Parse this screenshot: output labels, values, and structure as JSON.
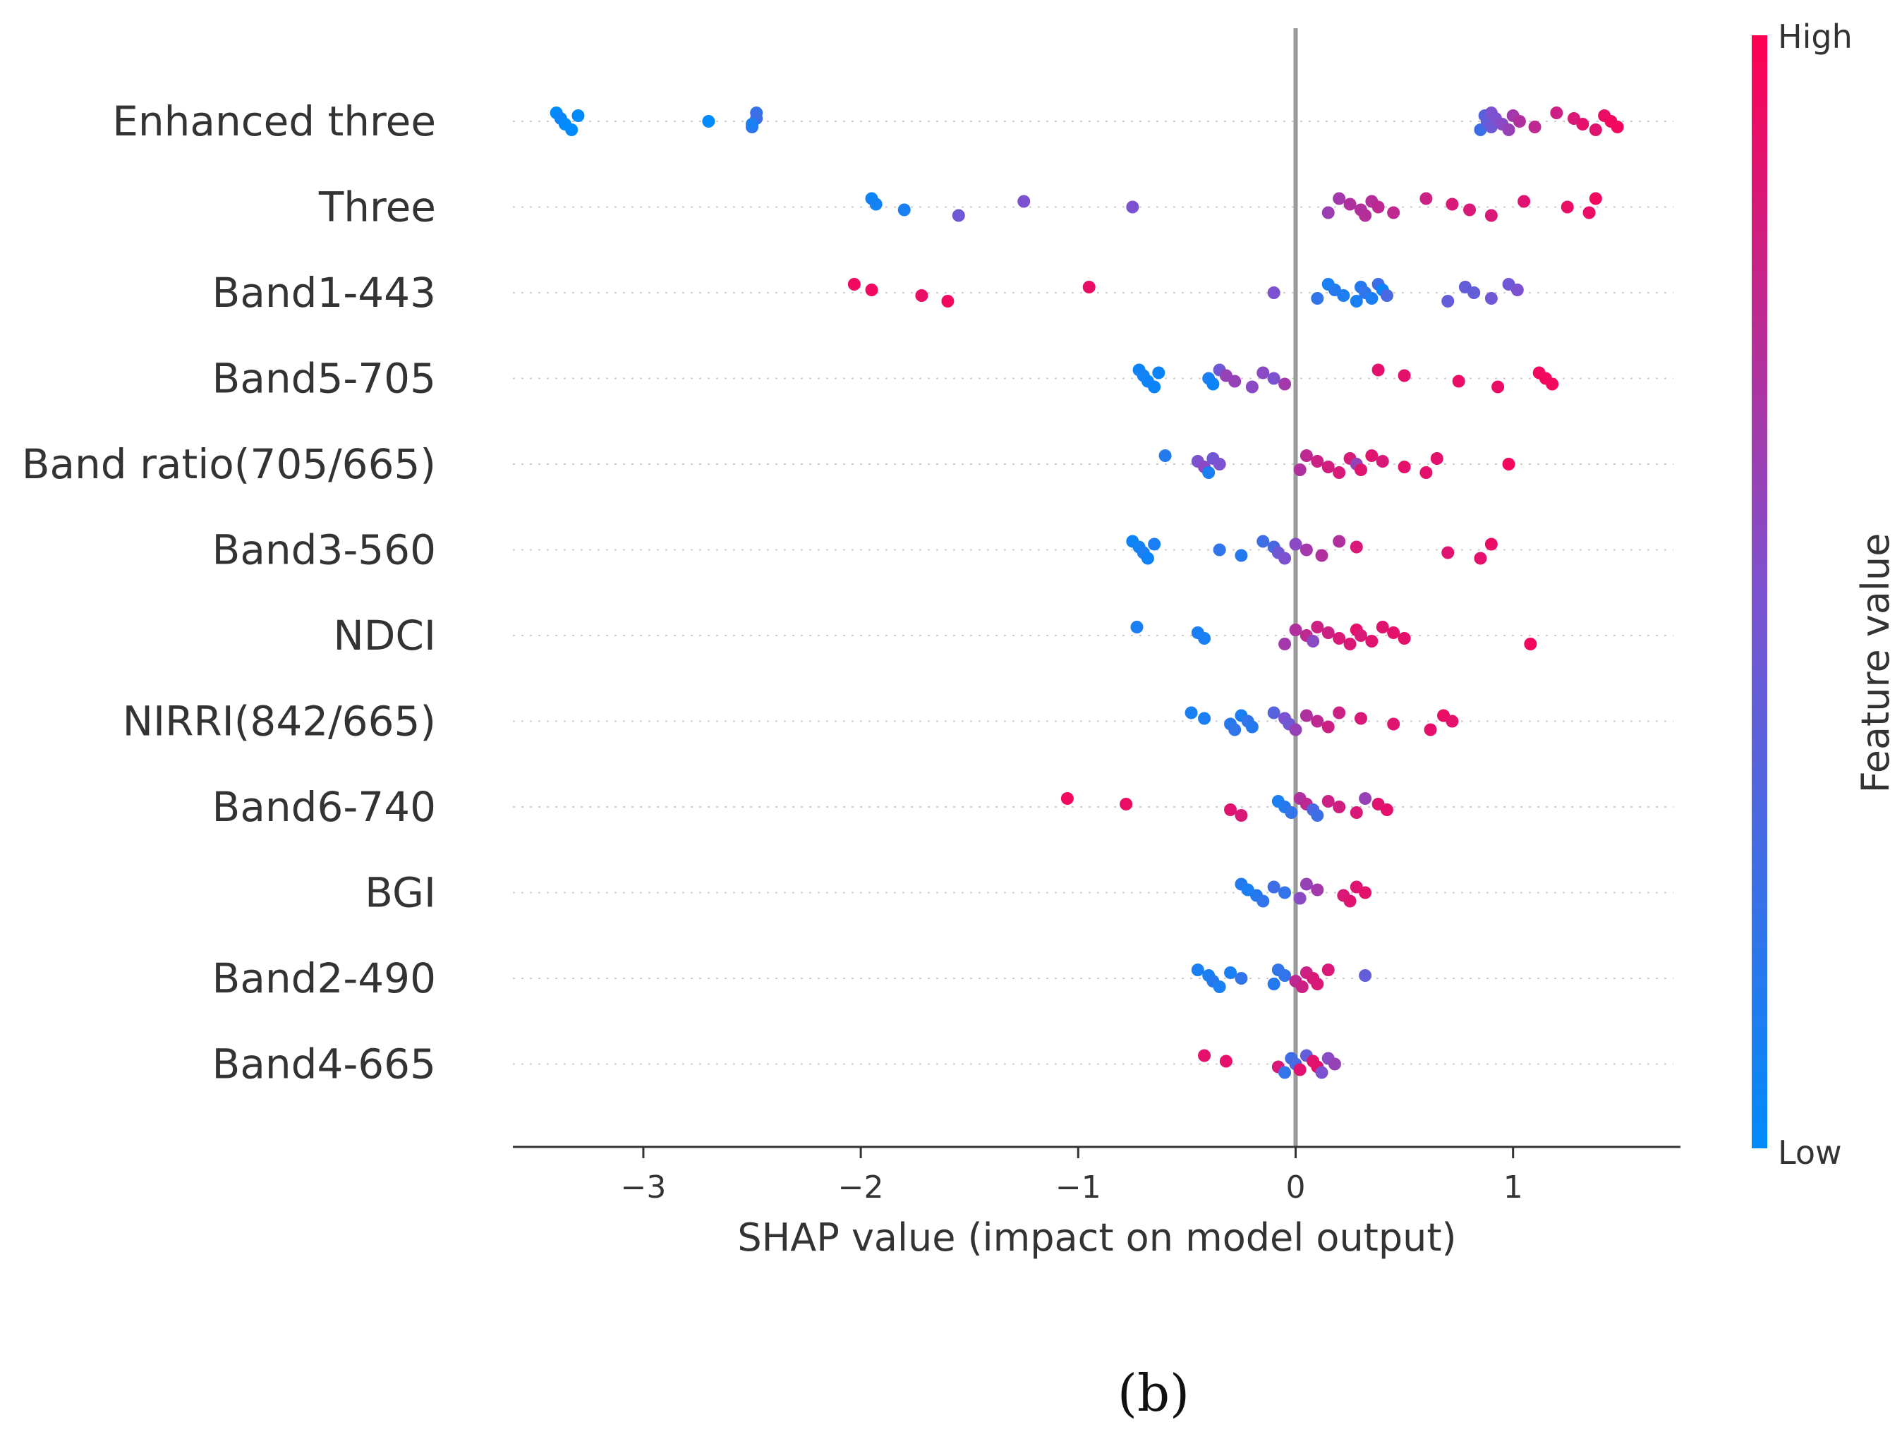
{
  "chart_data": {
    "type": "scatter",
    "subtype": "shap-beeswarm",
    "features": [
      "Enhanced three",
      "Three",
      "Band1-443",
      "Band5-705",
      "Band ratio(705/665)",
      "Band3-560",
      "NDCI",
      "NIRRI(842/665)",
      "Band6-740",
      "BGI",
      "Band2-490",
      "Band4-665"
    ],
    "xlabel": "SHAP value (impact on model output)",
    "xlim": [
      -3.6,
      1.77
    ],
    "xticks": [
      -3,
      -2,
      -1,
      0,
      1
    ],
    "xtick_labels": [
      "−3",
      "−2",
      "−1",
      "0",
      "1"
    ],
    "colorbar": {
      "title": "Feature value",
      "high_label": "High",
      "low_label": "Low"
    },
    "colors": {
      "low": "#008afb",
      "mid": "#7c52d0",
      "high": "#ff0052",
      "zero_line": "#999999",
      "axis": "#333333",
      "row_line": "#cccccc"
    },
    "caption": "(b)",
    "series": [
      {
        "feature": "Enhanced three",
        "points": [
          [
            -3.4,
            0.0
          ],
          [
            -3.38,
            0.05
          ],
          [
            -3.36,
            0.0
          ],
          [
            -3.33,
            0.0
          ],
          [
            -3.3,
            0.0
          ],
          [
            -2.7,
            0.0
          ],
          [
            -2.5,
            0.2
          ],
          [
            -2.48,
            0.22
          ],
          [
            -2.48,
            0.25
          ],
          [
            -2.5,
            0.1
          ],
          [
            0.85,
            0.25
          ],
          [
            0.87,
            0.35
          ],
          [
            0.88,
            0.4
          ],
          [
            0.9,
            0.45
          ],
          [
            0.9,
            0.5
          ],
          [
            0.92,
            0.5
          ],
          [
            0.95,
            0.55
          ],
          [
            0.98,
            0.6
          ],
          [
            1.0,
            0.65
          ],
          [
            1.03,
            0.7
          ],
          [
            1.1,
            0.75
          ],
          [
            1.2,
            0.8
          ],
          [
            1.28,
            0.85
          ],
          [
            1.32,
            0.9
          ],
          [
            1.38,
            0.88
          ],
          [
            1.42,
            0.92
          ],
          [
            1.45,
            0.95
          ],
          [
            1.48,
            0.95
          ]
        ]
      },
      {
        "feature": "Three",
        "points": [
          [
            -1.95,
            0.05
          ],
          [
            -1.93,
            0.08
          ],
          [
            -1.8,
            0.1
          ],
          [
            -1.55,
            0.45
          ],
          [
            -1.25,
            0.5
          ],
          [
            -0.75,
            0.5
          ],
          [
            0.15,
            0.62
          ],
          [
            0.2,
            0.65
          ],
          [
            0.25,
            0.7
          ],
          [
            0.3,
            0.7
          ],
          [
            0.32,
            0.72
          ],
          [
            0.35,
            0.72
          ],
          [
            0.38,
            0.75
          ],
          [
            0.45,
            0.75
          ],
          [
            0.6,
            0.8
          ],
          [
            0.72,
            0.85
          ],
          [
            0.8,
            0.85
          ],
          [
            0.9,
            0.85
          ],
          [
            1.05,
            0.88
          ],
          [
            1.25,
            0.92
          ],
          [
            1.35,
            0.92
          ],
          [
            1.38,
            0.95
          ]
        ]
      },
      {
        "feature": "Band1-443",
        "points": [
          [
            -2.03,
            0.95
          ],
          [
            -1.95,
            0.95
          ],
          [
            -1.72,
            0.92
          ],
          [
            -1.6,
            0.95
          ],
          [
            -0.95,
            0.92
          ],
          [
            -0.1,
            0.5
          ],
          [
            0.1,
            0.2
          ],
          [
            0.15,
            0.1
          ],
          [
            0.18,
            0.15
          ],
          [
            0.22,
            0.12
          ],
          [
            0.28,
            0.1
          ],
          [
            0.3,
            0.15
          ],
          [
            0.32,
            0.2
          ],
          [
            0.35,
            0.1
          ],
          [
            0.38,
            0.25
          ],
          [
            0.4,
            0.05
          ],
          [
            0.42,
            0.3
          ],
          [
            0.7,
            0.4
          ],
          [
            0.78,
            0.4
          ],
          [
            0.82,
            0.4
          ],
          [
            0.9,
            0.45
          ],
          [
            0.98,
            0.45
          ],
          [
            1.02,
            0.5
          ]
        ]
      },
      {
        "feature": "Band5-705",
        "points": [
          [
            -0.72,
            0.05
          ],
          [
            -0.7,
            0.08
          ],
          [
            -0.68,
            0.05
          ],
          [
            -0.65,
            0.05
          ],
          [
            -0.63,
            0.05
          ],
          [
            -0.4,
            0.1
          ],
          [
            -0.38,
            0.05
          ],
          [
            -0.35,
            0.45
          ],
          [
            -0.32,
            0.6
          ],
          [
            -0.28,
            0.6
          ],
          [
            -0.2,
            0.55
          ],
          [
            -0.15,
            0.55
          ],
          [
            -0.1,
            0.5
          ],
          [
            -0.05,
            0.65
          ],
          [
            0.38,
            0.9
          ],
          [
            0.5,
            0.9
          ],
          [
            0.75,
            0.92
          ],
          [
            0.93,
            0.92
          ],
          [
            1.12,
            0.95
          ],
          [
            1.15,
            0.95
          ],
          [
            1.18,
            0.95
          ]
        ]
      },
      {
        "feature": "Band ratio(705/665)",
        "points": [
          [
            -0.6,
            0.15
          ],
          [
            -0.45,
            0.5
          ],
          [
            -0.42,
            0.55
          ],
          [
            -0.4,
            0.1
          ],
          [
            -0.38,
            0.45
          ],
          [
            -0.35,
            0.5
          ],
          [
            0.02,
            0.7
          ],
          [
            0.05,
            0.75
          ],
          [
            0.1,
            0.8
          ],
          [
            0.15,
            0.82
          ],
          [
            0.2,
            0.85
          ],
          [
            0.25,
            0.85
          ],
          [
            0.28,
            0.6
          ],
          [
            0.3,
            0.88
          ],
          [
            0.35,
            0.88
          ],
          [
            0.4,
            0.85
          ],
          [
            0.5,
            0.9
          ],
          [
            0.6,
            0.9
          ],
          [
            0.65,
            0.9
          ],
          [
            0.98,
            0.95
          ]
        ]
      },
      {
        "feature": "Band3-560",
        "points": [
          [
            -0.75,
            0.05
          ],
          [
            -0.72,
            0.08
          ],
          [
            -0.7,
            0.1
          ],
          [
            -0.68,
            0.05
          ],
          [
            -0.65,
            0.1
          ],
          [
            -0.35,
            0.2
          ],
          [
            -0.25,
            0.15
          ],
          [
            -0.15,
            0.25
          ],
          [
            -0.1,
            0.3
          ],
          [
            -0.08,
            0.45
          ],
          [
            -0.05,
            0.5
          ],
          [
            0.0,
            0.55
          ],
          [
            0.05,
            0.65
          ],
          [
            0.12,
            0.7
          ],
          [
            0.2,
            0.7
          ],
          [
            0.28,
            0.85
          ],
          [
            0.7,
            0.88
          ],
          [
            0.85,
            0.9
          ],
          [
            0.9,
            0.92
          ]
        ]
      },
      {
        "feature": "NDCI",
        "points": [
          [
            -0.73,
            0.1
          ],
          [
            -0.45,
            0.1
          ],
          [
            -0.42,
            0.1
          ],
          [
            -0.05,
            0.65
          ],
          [
            0.0,
            0.7
          ],
          [
            0.05,
            0.75
          ],
          [
            0.08,
            0.55
          ],
          [
            0.1,
            0.8
          ],
          [
            0.15,
            0.8
          ],
          [
            0.2,
            0.85
          ],
          [
            0.25,
            0.85
          ],
          [
            0.28,
            0.9
          ],
          [
            0.3,
            0.85
          ],
          [
            0.35,
            0.88
          ],
          [
            0.4,
            0.88
          ],
          [
            0.45,
            0.9
          ],
          [
            0.5,
            0.9
          ],
          [
            1.08,
            0.95
          ]
        ]
      },
      {
        "feature": "NIRRI(842/665)",
        "points": [
          [
            -0.48,
            0.1
          ],
          [
            -0.42,
            0.1
          ],
          [
            -0.3,
            0.15
          ],
          [
            -0.28,
            0.2
          ],
          [
            -0.25,
            0.1
          ],
          [
            -0.22,
            0.2
          ],
          [
            -0.2,
            0.15
          ],
          [
            -0.1,
            0.35
          ],
          [
            -0.05,
            0.5
          ],
          [
            -0.03,
            0.45
          ],
          [
            0.0,
            0.6
          ],
          [
            0.05,
            0.7
          ],
          [
            0.1,
            0.75
          ],
          [
            0.15,
            0.8
          ],
          [
            0.2,
            0.8
          ],
          [
            0.3,
            0.85
          ],
          [
            0.45,
            0.88
          ],
          [
            0.62,
            0.9
          ],
          [
            0.68,
            0.92
          ],
          [
            0.72,
            0.9
          ]
        ]
      },
      {
        "feature": "Band6-740",
        "points": [
          [
            -1.05,
            0.95
          ],
          [
            -0.78,
            0.92
          ],
          [
            -0.3,
            0.88
          ],
          [
            -0.25,
            0.85
          ],
          [
            -0.08,
            0.1
          ],
          [
            -0.05,
            0.15
          ],
          [
            -0.02,
            0.2
          ],
          [
            0.02,
            0.7
          ],
          [
            0.05,
            0.75
          ],
          [
            0.08,
            0.3
          ],
          [
            0.1,
            0.25
          ],
          [
            0.15,
            0.8
          ],
          [
            0.2,
            0.82
          ],
          [
            0.28,
            0.85
          ],
          [
            0.32,
            0.6
          ],
          [
            0.38,
            0.88
          ],
          [
            0.42,
            0.9
          ]
        ]
      },
      {
        "feature": "BGI",
        "points": [
          [
            -0.25,
            0.15
          ],
          [
            -0.22,
            0.1
          ],
          [
            -0.18,
            0.15
          ],
          [
            -0.15,
            0.2
          ],
          [
            -0.1,
            0.25
          ],
          [
            -0.05,
            0.2
          ],
          [
            0.02,
            0.55
          ],
          [
            0.05,
            0.6
          ],
          [
            0.1,
            0.65
          ],
          [
            0.22,
            0.85
          ],
          [
            0.25,
            0.88
          ],
          [
            0.28,
            0.88
          ],
          [
            0.32,
            0.9
          ]
        ]
      },
      {
        "feature": "Band2-490",
        "points": [
          [
            -0.45,
            0.1
          ],
          [
            -0.4,
            0.1
          ],
          [
            -0.38,
            0.15
          ],
          [
            -0.35,
            0.1
          ],
          [
            -0.3,
            0.1
          ],
          [
            -0.25,
            0.2
          ],
          [
            -0.1,
            0.15
          ],
          [
            -0.08,
            0.2
          ],
          [
            -0.05,
            0.2
          ],
          [
            0.0,
            0.75
          ],
          [
            0.03,
            0.8
          ],
          [
            0.05,
            0.8
          ],
          [
            0.08,
            0.85
          ],
          [
            0.1,
            0.85
          ],
          [
            0.15,
            0.85
          ],
          [
            0.32,
            0.4
          ]
        ]
      },
      {
        "feature": "Band4-665",
        "points": [
          [
            -0.42,
            0.9
          ],
          [
            -0.32,
            0.9
          ],
          [
            -0.08,
            0.85
          ],
          [
            -0.05,
            0.2
          ],
          [
            -0.02,
            0.25
          ],
          [
            0.0,
            0.3
          ],
          [
            0.02,
            0.88
          ],
          [
            0.05,
            0.4
          ],
          [
            0.08,
            0.88
          ],
          [
            0.1,
            0.9
          ],
          [
            0.12,
            0.5
          ],
          [
            0.15,
            0.55
          ],
          [
            0.18,
            0.6
          ]
        ]
      }
    ]
  }
}
